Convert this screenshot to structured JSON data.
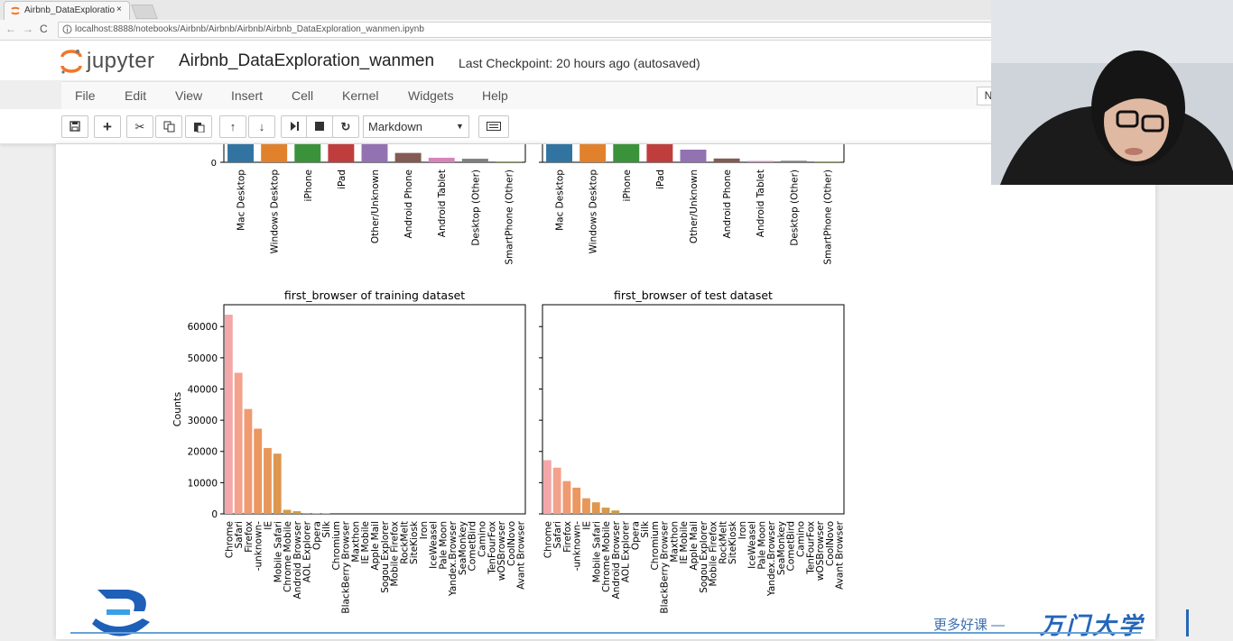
{
  "browser": {
    "tab_title": "Airbnb_DataExploratio",
    "tab_close": "×",
    "back": "←",
    "forward": "→",
    "reload": "C",
    "url": "localhost:8888/notebooks/Airbnb/Airbnb/Airbnb/Airbnb_DataExploration_wanmen.ipynb"
  },
  "jupyter": {
    "logo_text": "jupyter",
    "notebook_name": "Airbnb_DataExploration_wanmen",
    "checkpoint": "Last Checkpoint: 20 hours ago (autosaved)",
    "menu": [
      "File",
      "Edit",
      "View",
      "Insert",
      "Cell",
      "Kernel",
      "Widgets",
      "Help"
    ],
    "kernel_indicator": "N",
    "cell_type": "Markdown",
    "toolbar_icons": [
      "save-icon",
      "add-icon",
      "cut-icon",
      "copy-icon",
      "paste-icon",
      "move-up-icon",
      "move-down-icon",
      "run-icon",
      "stop-icon",
      "restart-icon",
      "keyboard-icon"
    ]
  },
  "chart_data": [
    {
      "type": "bar",
      "title": "",
      "categories": [
        "Mac Desktop",
        "Windows Desktop",
        "iPhone",
        "iPad",
        "Other/Unknown",
        "Android Phone",
        "Android Tablet",
        "Desktop (Other)",
        "SmartPhone (Other)"
      ],
      "colors": [
        "#3274a1",
        "#e1812c",
        "#3a923a",
        "#c03d3e",
        "#9372b2",
        "#845b53",
        "#d684bd",
        "#7f7f7f",
        "#a9aa35"
      ],
      "values_relative": [
        1.0,
        1.0,
        1.0,
        1.0,
        1.0,
        0.37,
        0.18,
        0.14,
        0.02
      ],
      "partially_visible": true
    },
    {
      "type": "bar",
      "title": "",
      "categories": [
        "Mac Desktop",
        "Windows Desktop",
        "iPhone",
        "iPad",
        "Other/Unknown",
        "Android Phone",
        "Android Tablet",
        "Desktop (Other)",
        "SmartPhone (Other)"
      ],
      "colors": [
        "#3274a1",
        "#e1812c",
        "#3a923a",
        "#c03d3e",
        "#9372b2",
        "#845b53",
        "#d684bd",
        "#7f7f7f",
        "#a9aa35"
      ],
      "values_relative": [
        1.0,
        1.0,
        1.0,
        0.85,
        0.5,
        0.15,
        0.05,
        0.06,
        0.01
      ],
      "partially_visible": true
    },
    {
      "type": "bar",
      "title": "first_browser of training dataset",
      "ylabel": "Counts",
      "ylim": [
        0,
        67000
      ],
      "yticks": [
        0,
        10000,
        20000,
        30000,
        40000,
        50000,
        60000
      ],
      "categories": [
        "Chrome",
        "Safari",
        "Firefox",
        "-unknown-",
        "IE",
        "Mobile Safari",
        "Chrome Mobile",
        "Android Browser",
        "AOL Explorer",
        "Opera",
        "Silk",
        "Chromium",
        "BlackBerry Browser",
        "Maxthon",
        "IE Mobile",
        "Apple Mail",
        "Sogou Explorer",
        "Mobile Firefox",
        "RockMelt",
        "SiteKiosk",
        "Iron",
        "IceWeasel",
        "Pale Moon",
        "Yandex.Browser",
        "SeaMonkey",
        "CometBird",
        "Camino",
        "TenFourFox",
        "wOSBrowser",
        "CoolNovo",
        "Avant Browser"
      ],
      "values": [
        63800,
        45200,
        33600,
        27300,
        21100,
        19300,
        1300,
        850,
        250,
        190,
        120,
        70,
        50,
        40,
        30,
        25,
        20,
        17,
        15,
        12,
        10,
        8,
        7,
        6,
        5,
        4,
        3,
        3,
        2,
        1,
        1
      ]
    },
    {
      "type": "bar",
      "title": "first_browser of test dataset",
      "ylim": [
        0,
        67000
      ],
      "categories": [
        "Chrome",
        "Safari",
        "Firefox",
        "-unknown-",
        "IE",
        "Mobile Safari",
        "Chrome Mobile",
        "Android Browser",
        "AOL Explorer",
        "Opera",
        "Silk",
        "Chromium",
        "BlackBerry Browser",
        "Maxthon",
        "IE Mobile",
        "Apple Mail",
        "Sogou Explorer",
        "Mobile Firefox",
        "RockMelt",
        "SiteKiosk",
        "Iron",
        "IceWeasel",
        "Pale Moon",
        "Yandex.Browser",
        "SeaMonkey",
        "CometBird",
        "Camino",
        "TenFourFox",
        "wOSBrowser",
        "CoolNovo",
        "Avant Browser"
      ],
      "values": [
        17200,
        14800,
        10500,
        8400,
        5000,
        3700,
        2000,
        1100,
        60,
        40,
        30,
        20,
        15,
        12,
        10,
        8,
        6,
        5,
        4,
        3,
        3,
        2,
        2,
        2,
        1,
        1,
        1,
        1,
        1,
        1,
        1
      ]
    }
  ],
  "watermark": {
    "slogan": "更多好课 —",
    "brand": "万门大学"
  }
}
